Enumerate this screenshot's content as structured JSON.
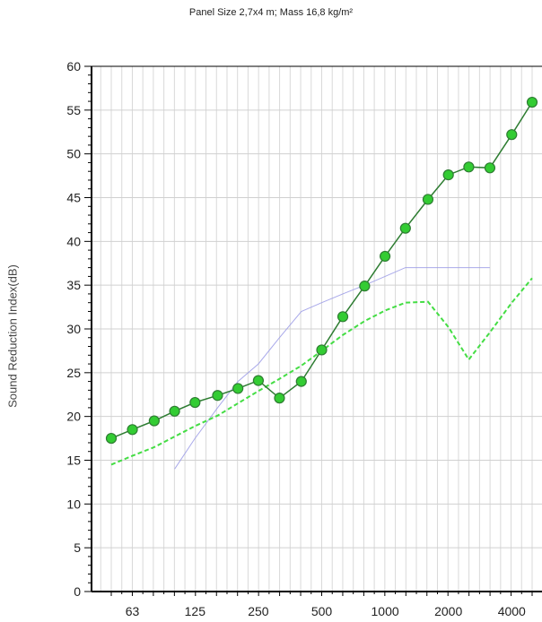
{
  "chart_data": {
    "type": "line",
    "title": "Panel Size 2,7x4 m; Mass 16,8 kg/m²",
    "xlabel": "",
    "ylabel": "Sound Reduction Index(dB)",
    "x_scale": "log",
    "y_ticks": [
      "0",
      "5",
      "10",
      "15",
      "20",
      "25",
      "30",
      "35",
      "40",
      "45",
      "50",
      "55",
      "60"
    ],
    "x_tick_labels": [
      {
        "value": 63,
        "label": "63"
      },
      {
        "value": 125,
        "label": "125"
      },
      {
        "value": 250,
        "label": "250"
      },
      {
        "value": 500,
        "label": "500"
      },
      {
        "value": 1000,
        "label": "1000"
      },
      {
        "value": 2000,
        "label": "2000"
      },
      {
        "value": 4000,
        "label": "4000"
      }
    ],
    "ylim": [
      0,
      60
    ],
    "grid": true,
    "series": [
      {
        "color": "#2e7d32",
        "marker_color": "#33cc33",
        "style": "solid-markers",
        "x": [
          50,
          63,
          80,
          100,
          125,
          160,
          200,
          250,
          315,
          400,
          500,
          630,
          800,
          1000,
          1250,
          1600,
          2000,
          2500,
          3150,
          4000,
          5000
        ],
        "values": [
          17.5,
          18.5,
          19.5,
          20.6,
          21.6,
          22.4,
          23.2,
          24.1,
          22.1,
          24.0,
          27.6,
          31.4,
          34.9,
          38.3,
          41.5,
          44.8,
          47.6,
          48.5,
          48.4,
          52.2,
          55.9
        ]
      },
      {
        "color": "#44dd44",
        "style": "dashed",
        "x": [
          50,
          63,
          80,
          100,
          125,
          160,
          200,
          250,
          315,
          400,
          500,
          630,
          800,
          1000,
          1250,
          1600,
          2000,
          2500,
          3150,
          4000,
          5000
        ],
        "values": [
          14.5,
          15.5,
          16.5,
          17.7,
          18.9,
          20.1,
          21.5,
          22.9,
          24.3,
          25.8,
          27.5,
          29.3,
          30.9,
          32.1,
          33.0,
          33.1,
          30.2,
          26.5,
          29.6,
          33.0,
          35.8
        ]
      },
      {
        "color": "#9a9ae6",
        "style": "thin",
        "x": [
          100,
          125,
          160,
          200,
          250,
          315,
          400,
          500,
          630,
          800,
          1000,
          1250,
          1600,
          2000,
          2500,
          3150
        ],
        "values": [
          14.0,
          17.5,
          21.0,
          24.0,
          26.0,
          29.0,
          32.0,
          33.0,
          34.0,
          35.0,
          36.0,
          37.0,
          37.0,
          37.0,
          37.0,
          37.0
        ]
      }
    ]
  }
}
